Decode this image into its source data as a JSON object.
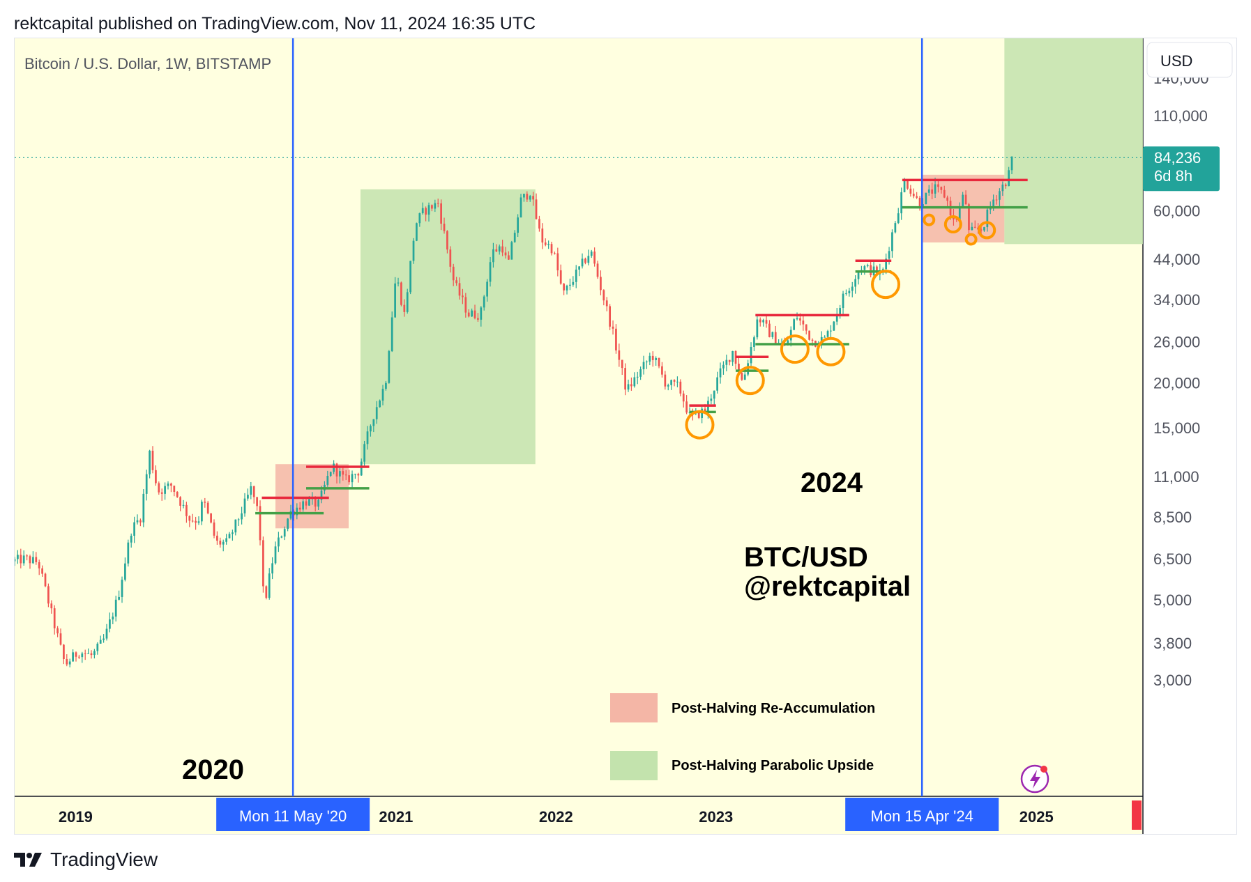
{
  "header": {
    "publisher_line": "rektcapital published on TradingView.com, Nov 11, 2024 16:35 UTC"
  },
  "symbol": {
    "title": "Bitcoin / U.S. Dollar, 1W, BITSTAMP",
    "currency_button": "USD"
  },
  "price_tag": {
    "value": "84,236",
    "countdown": "6d 8h"
  },
  "date_badges": [
    "Mon 11 May '20",
    "Mon 15 Apr '24"
  ],
  "annotations": {
    "year_2020": "2020",
    "year_2024": "2024",
    "pair": "BTC/USD",
    "author": "@rektcapital"
  },
  "legend": [
    {
      "label": "Post-Halving Re-Accumulation",
      "color": "#f4b6a6"
    },
    {
      "label": "Post-Halving Parabolic Upside",
      "color": "#c3e3ad"
    }
  ],
  "footer": {
    "brand": "TradingView"
  },
  "colors": {
    "background": "#ffffe0",
    "candle_up": "#26a69a",
    "candle_down": "#ef5350",
    "halving_line": "#2962ff",
    "resistance": "#e8283c",
    "support": "#43a047",
    "circle": "#ff9800",
    "price_tag": "#22a39a"
  },
  "icons": [
    "lightning-icon",
    "tradingview-logo-icon"
  ],
  "chart_data": {
    "type": "candlestick",
    "title": "Bitcoin / U.S. Dollar, 1W, BITSTAMP",
    "y_scale": "log",
    "y_ticks": [
      3000,
      3800,
      5000,
      6500,
      8500,
      11000,
      15000,
      20000,
      26000,
      34000,
      44000,
      60000,
      110000,
      140000
    ],
    "y_tick_labels": [
      "3,000",
      "3,800",
      "5,000",
      "6,500",
      "8,500",
      "11,000",
      "15,000",
      "20,000",
      "26,000",
      "34,000",
      "44,000",
      "60,000",
      "110,000",
      "140,000"
    ],
    "x_ticks": [
      "2019",
      "2021",
      "2022",
      "2023",
      "2025"
    ],
    "x_tick_dates": [
      "2019-01-01",
      "2021-01-01",
      "2022-01-01",
      "2023-01-01",
      "2025-01-01"
    ],
    "x_range": [
      "2018-08-15",
      "2025-09-01"
    ],
    "last_price": 84236,
    "halvings": [
      "2020-05-11",
      "2024-04-15"
    ],
    "price_path": [
      [
        "2018-08-15",
        6400
      ],
      [
        "2018-09-15",
        6500
      ],
      [
        "2018-10-15",
        6350
      ],
      [
        "2018-11-20",
        4300
      ],
      [
        "2018-12-15",
        3300
      ],
      [
        "2019-01-15",
        3600
      ],
      [
        "2019-02-15",
        3500
      ],
      [
        "2019-03-15",
        3900
      ],
      [
        "2019-04-15",
        5100
      ],
      [
        "2019-05-15",
        7800
      ],
      [
        "2019-06-05",
        8500
      ],
      [
        "2019-06-26",
        12800
      ],
      [
        "2019-07-15",
        10000
      ],
      [
        "2019-08-15",
        10400
      ],
      [
        "2019-09-25",
        8400
      ],
      [
        "2019-10-15",
        8300
      ],
      [
        "2019-10-26",
        9500
      ],
      [
        "2019-11-25",
        7200
      ],
      [
        "2019-12-20",
        7200
      ],
      [
        "2020-01-20",
        8700
      ],
      [
        "2020-02-13",
        10200
      ],
      [
        "2020-03-01",
        8600
      ],
      [
        "2020-03-13",
        4800
      ],
      [
        "2020-04-05",
        6800
      ],
      [
        "2020-05-11",
        8700
      ],
      [
        "2020-06-15",
        9400
      ],
      [
        "2020-07-15",
        9200
      ],
      [
        "2020-08-15",
        11800
      ],
      [
        "2020-09-15",
        10700
      ],
      [
        "2020-10-15",
        11400
      ],
      [
        "2020-11-15",
        16000
      ],
      [
        "2020-12-15",
        20000
      ],
      [
        "2021-01-08",
        40000
      ],
      [
        "2021-01-27",
        31000
      ],
      [
        "2021-02-21",
        55000
      ],
      [
        "2021-03-13",
        60000
      ],
      [
        "2021-04-14",
        63000
      ],
      [
        "2021-05-20",
        38000
      ],
      [
        "2021-06-22",
        31000
      ],
      [
        "2021-07-20",
        31000
      ],
      [
        "2021-08-15",
        46000
      ],
      [
        "2021-09-07",
        48000
      ],
      [
        "2021-09-20",
        42000
      ],
      [
        "2021-10-20",
        64000
      ],
      [
        "2021-11-10",
        68000
      ],
      [
        "2021-12-05",
        50000
      ],
      [
        "2022-01-01",
        47000
      ],
      [
        "2022-01-24",
        35000
      ],
      [
        "2022-03-28",
        46500
      ],
      [
        "2022-05-10",
        30000
      ],
      [
        "2022-06-18",
        19000
      ],
      [
        "2022-08-15",
        24000
      ],
      [
        "2022-09-15",
        20000
      ],
      [
        "2022-10-15",
        19500
      ],
      [
        "2022-11-10",
        16000
      ],
      [
        "2022-12-15",
        16800
      ],
      [
        "2023-01-15",
        21000
      ],
      [
        "2023-02-15",
        24500
      ],
      [
        "2023-03-10",
        20000
      ],
      [
        "2023-04-14",
        30500
      ],
      [
        "2023-05-15",
        27000
      ],
      [
        "2023-06-15",
        25000
      ],
      [
        "2023-07-10",
        30800
      ],
      [
        "2023-08-18",
        26000
      ],
      [
        "2023-09-15",
        26500
      ],
      [
        "2023-10-25",
        34500
      ],
      [
        "2023-12-05",
        42000
      ],
      [
        "2024-01-22",
        40000
      ],
      [
        "2024-02-28",
        61000
      ],
      [
        "2024-03-14",
        73000
      ],
      [
        "2024-04-15",
        63000
      ],
      [
        "2024-05-20",
        69000
      ],
      [
        "2024-06-15",
        66000
      ],
      [
        "2024-07-05",
        55000
      ],
      [
        "2024-07-29",
        68000
      ],
      [
        "2024-08-05",
        52000
      ],
      [
        "2024-09-06",
        53500
      ],
      [
        "2024-09-30",
        64000
      ],
      [
        "2024-10-29",
        72000
      ],
      [
        "2024-11-06",
        76000
      ],
      [
        "2024-11-11",
        84236
      ]
    ],
    "zones": [
      {
        "kind": "re-accumulation",
        "x0": "2020-04-01",
        "x1": "2020-09-15",
        "y0": 7900,
        "y1": 11900
      },
      {
        "kind": "parabolic-upside",
        "x0": "2020-10-12",
        "x1": "2021-11-15",
        "y0": 11900,
        "y1": 68800
      },
      {
        "kind": "re-accumulation",
        "x0": "2024-04-15",
        "x1": "2024-10-20",
        "y0": 49000,
        "y1": 75500
      },
      {
        "kind": "parabolic-upside",
        "x0": "2024-10-20",
        "x1": "2025-09-01",
        "y0": 48500,
        "y1": 200000
      }
    ],
    "resistance_lines": [
      {
        "x0": "2020-03-01",
        "x1": "2020-08-01",
        "y": 9600
      },
      {
        "x0": "2020-06-10",
        "x1": "2020-11-01",
        "y": 11700
      },
      {
        "x0": "2022-11-01",
        "x1": "2023-01-01",
        "y": 17300
      },
      {
        "x0": "2023-02-15",
        "x1": "2023-05-01",
        "y": 23600
      },
      {
        "x0": "2023-04-01",
        "x1": "2023-11-01",
        "y": 30800
      },
      {
        "x0": "2023-11-15",
        "x1": "2024-02-05",
        "y": 43600
      },
      {
        "x0": "2024-03-01",
        "x1": "2024-12-12",
        "y": 73000
      }
    ],
    "support_lines": [
      {
        "x0": "2020-02-15",
        "x1": "2020-07-20",
        "y": 8700
      },
      {
        "x0": "2020-06-10",
        "x1": "2020-11-01",
        "y": 10200
      },
      {
        "x0": "2022-11-01",
        "x1": "2023-01-01",
        "y": 16600
      },
      {
        "x0": "2023-02-15",
        "x1": "2023-05-01",
        "y": 21600
      },
      {
        "x0": "2023-04-01",
        "x1": "2023-11-01",
        "y": 25600
      },
      {
        "x0": "2023-11-15",
        "x1": "2024-02-05",
        "y": 40700
      },
      {
        "x0": "2024-03-01",
        "x1": "2024-12-12",
        "y": 61300
      }
    ],
    "retest_circles": [
      {
        "x": "2022-11-25",
        "y": 15300,
        "size": "large"
      },
      {
        "x": "2023-03-20",
        "y": 20300,
        "size": "large"
      },
      {
        "x": "2023-06-30",
        "y": 24800,
        "size": "large"
      },
      {
        "x": "2023-09-20",
        "y": 24400,
        "size": "large"
      },
      {
        "x": "2024-01-23",
        "y": 37500,
        "size": "large"
      },
      {
        "x": "2024-05-01",
        "y": 56600,
        "size": "small"
      },
      {
        "x": "2024-06-25",
        "y": 55000,
        "size": "medium"
      },
      {
        "x": "2024-08-05",
        "y": 50000,
        "size": "small"
      },
      {
        "x": "2024-09-10",
        "y": 53000,
        "size": "medium"
      }
    ]
  }
}
